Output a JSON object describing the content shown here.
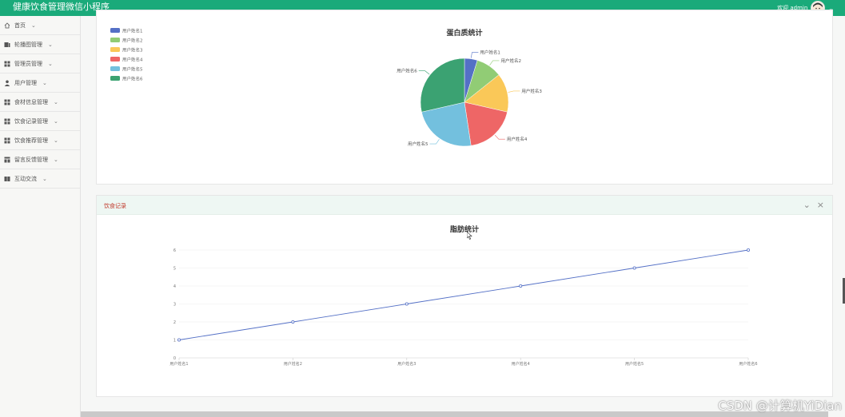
{
  "app": {
    "title": "健康饮食管理微信小程序",
    "welcome": "欢迎 admin"
  },
  "sidebar": {
    "items": [
      {
        "label": "首页",
        "icon": "home-icon"
      },
      {
        "label": "轮播图管理",
        "icon": "image-icon"
      },
      {
        "label": "管理员管理",
        "icon": "grid-icon"
      },
      {
        "label": "用户管理",
        "icon": "user-icon"
      },
      {
        "label": "食材信息管理",
        "icon": "grid-icon"
      },
      {
        "label": "饮食记录管理",
        "icon": "grid-icon"
      },
      {
        "label": "饮食推荐管理",
        "icon": "grid-icon"
      },
      {
        "label": "留言反馈管理",
        "icon": "table-icon"
      },
      {
        "label": "互动交流",
        "icon": "book-icon"
      }
    ]
  },
  "pie_panel": {
    "chart_data": {
      "type": "pie",
      "title": "蛋白质统计",
      "legend_position": "top-left",
      "categories": [
        "用户姓名1",
        "用户姓名2",
        "用户姓名3",
        "用户姓名4",
        "用户姓名5",
        "用户姓名6"
      ],
      "values": [
        1,
        2,
        3,
        4,
        5,
        6
      ],
      "colors": [
        "#5470c6",
        "#91cc75",
        "#fac858",
        "#ee6666",
        "#73c0de",
        "#3ba272"
      ]
    }
  },
  "line_panel": {
    "header_title": "饮食记录",
    "chart_data": {
      "type": "line",
      "title": "脂肪统计",
      "categories": [
        "用户姓名1",
        "用户姓名2",
        "用户姓名3",
        "用户姓名4",
        "用户姓名5",
        "用户姓名6"
      ],
      "values": [
        1,
        2,
        3,
        4,
        5,
        6
      ],
      "ylim": [
        0,
        6
      ],
      "y_ticks": [
        "0",
        "1",
        "2",
        "3",
        "4",
        "5",
        "6"
      ],
      "grid": true,
      "color": "#5470c6"
    }
  },
  "watermark": "CSDN @计算机YiDian"
}
